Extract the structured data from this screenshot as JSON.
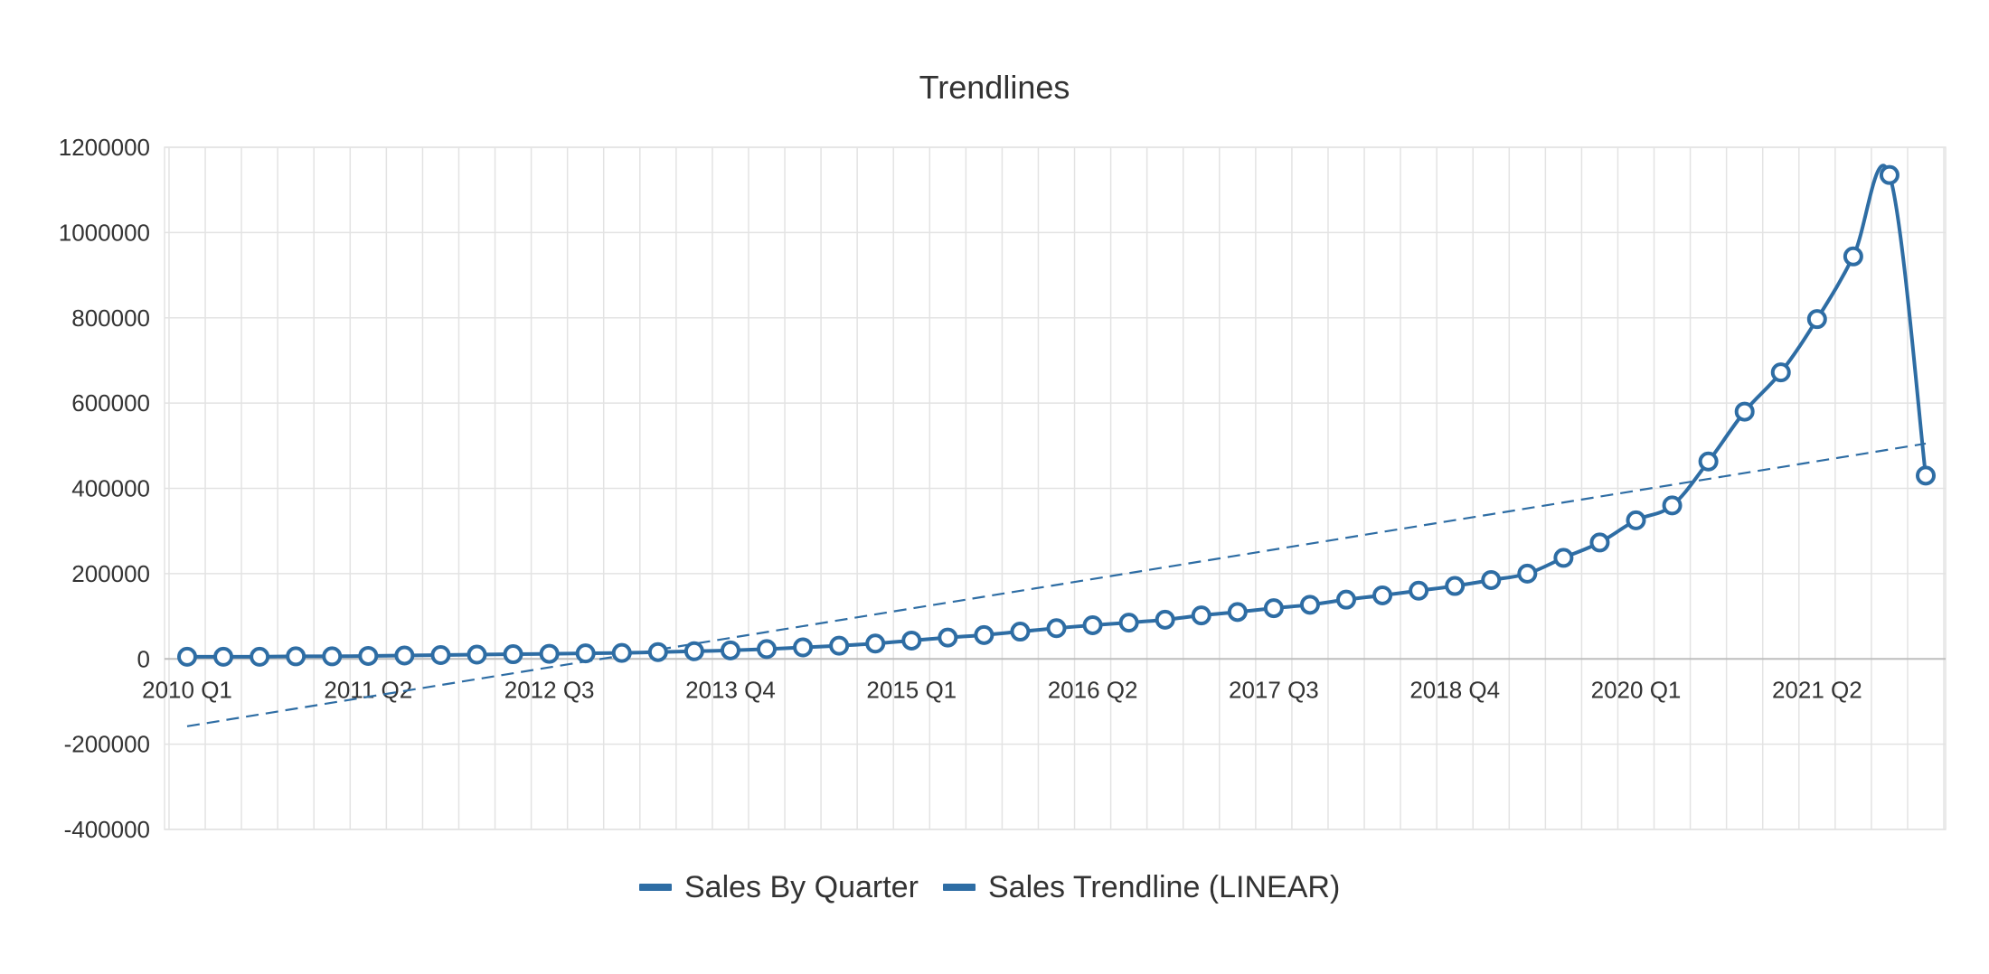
{
  "chart_data": {
    "type": "line",
    "title": "Trendlines",
    "xlabel": "",
    "ylabel": "",
    "grid": true,
    "legend_position": "bottom",
    "ylim": [
      -400000,
      1200000
    ],
    "y_ticks": [
      1200000,
      1000000,
      800000,
      600000,
      400000,
      200000,
      0,
      -200000,
      -400000
    ],
    "categories": [
      "2010 Q1",
      "2010 Q2",
      "2010 Q3",
      "2010 Q4",
      "2011 Q1",
      "2011 Q2",
      "2011 Q3",
      "2011 Q4",
      "2012 Q1",
      "2012 Q2",
      "2012 Q3",
      "2012 Q4",
      "2013 Q1",
      "2013 Q2",
      "2013 Q3",
      "2013 Q4",
      "2014 Q1",
      "2014 Q2",
      "2014 Q3",
      "2014 Q4",
      "2015 Q1",
      "2015 Q2",
      "2015 Q3",
      "2015 Q4",
      "2016 Q1",
      "2016 Q2",
      "2016 Q3",
      "2016 Q4",
      "2017 Q1",
      "2017 Q2",
      "2017 Q3",
      "2017 Q4",
      "2018 Q1",
      "2018 Q2",
      "2018 Q3",
      "2018 Q4",
      "2019 Q1",
      "2019 Q2",
      "2019 Q3",
      "2019 Q4",
      "2020 Q1",
      "2020 Q2",
      "2020 Q3",
      "2020 Q4",
      "2021 Q1",
      "2021 Q2",
      "2021 Q3",
      "2021 Q4",
      "2022 Q1"
    ],
    "x_tick_labels": [
      "2010 Q1",
      "2011 Q2",
      "2012 Q3",
      "2013 Q4",
      "2015 Q1",
      "2016 Q2",
      "2017 Q3",
      "2018 Q4",
      "2020 Q1",
      "2021 Q2"
    ],
    "series": [
      {
        "name": "Sales By Quarter",
        "color": "#2e6da4",
        "style": "solid",
        "markers": true,
        "values": [
          5000,
          5000,
          5000,
          6000,
          6000,
          7000,
          8000,
          9000,
          10000,
          11000,
          12000,
          13000,
          14000,
          16000,
          18000,
          20000,
          23000,
          27000,
          31000,
          36000,
          43000,
          50000,
          56000,
          64000,
          72000,
          79000,
          85000,
          92000,
          102000,
          110000,
          119000,
          127000,
          139000,
          149000,
          160000,
          171000,
          185000,
          200000,
          237000,
          273000,
          325000,
          360000,
          463000,
          580000,
          672000,
          797000,
          944000,
          1135000,
          430000
        ]
      },
      {
        "name": "Sales Trendline (LINEAR)",
        "color": "#2e6da4",
        "style": "dashed",
        "markers": false,
        "values_endpoints": [
          -158000,
          505000
        ]
      }
    ]
  }
}
